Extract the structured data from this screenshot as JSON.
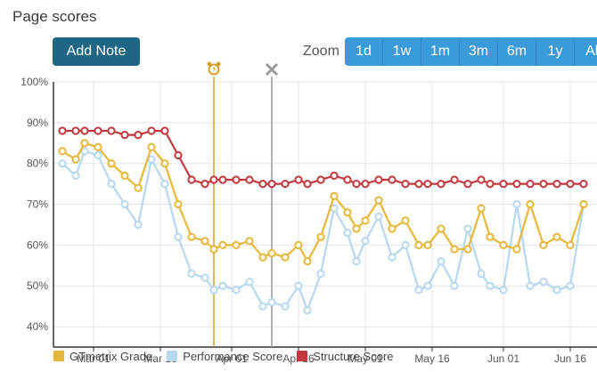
{
  "page_title": "Page scores",
  "add_note_label": "Add Note",
  "zoom": {
    "label": "Zoom",
    "options": [
      "1d",
      "1w",
      "1m",
      "3m",
      "6m",
      "1y",
      "All"
    ]
  },
  "colors": {
    "gtmetrix": "#e6b83a",
    "performance": "#b6d8ef",
    "structure": "#c0383d",
    "accent_button": "#1f6684",
    "zoom_button": "#3a9bd8",
    "annotation_alarm": "#d4a12a",
    "annotation_cross": "#999999"
  },
  "chart_data": {
    "type": "line",
    "ylim": [
      35,
      100
    ],
    "yticks": [
      40,
      50,
      60,
      70,
      80,
      90,
      100
    ],
    "ytick_labels": [
      "40%",
      "50%",
      "60%",
      "70%",
      "80%",
      "90%",
      "100%"
    ],
    "xtick_labels": [
      "Mar 01",
      "Mar 16",
      "Apr 01",
      "Apr 16",
      "May 01",
      "May 16",
      "Jun 01",
      "Jun 16"
    ],
    "x_start": "2016-02-21",
    "x_end": "2016-06-22",
    "xticks": [
      "2016-03-01",
      "2016-03-16",
      "2016-04-01",
      "2016-04-16",
      "2016-05-01",
      "2016-05-16",
      "2016-06-01",
      "2016-06-16"
    ],
    "x": [
      "2016-02-23",
      "2016-02-26",
      "2016-02-28",
      "2016-03-02",
      "2016-03-05",
      "2016-03-08",
      "2016-03-11",
      "2016-03-14",
      "2016-03-17",
      "2016-03-20",
      "2016-03-23",
      "2016-03-26",
      "2016-03-28",
      "2016-03-30",
      "2016-04-02",
      "2016-04-05",
      "2016-04-08",
      "2016-04-10",
      "2016-04-13",
      "2016-04-16",
      "2016-04-18",
      "2016-04-21",
      "2016-04-24",
      "2016-04-27",
      "2016-04-29",
      "2016-05-01",
      "2016-05-04",
      "2016-05-07",
      "2016-05-10",
      "2016-05-13",
      "2016-05-15",
      "2016-05-18",
      "2016-05-21",
      "2016-05-24",
      "2016-05-27",
      "2016-05-29",
      "2016-06-01",
      "2016-06-04",
      "2016-06-07",
      "2016-06-10",
      "2016-06-13",
      "2016-06-16",
      "2016-06-19"
    ],
    "series": [
      {
        "name": "GTmetrix Grade",
        "color": "#e6b83a",
        "values": [
          83,
          81,
          85,
          84,
          80,
          77,
          74,
          84,
          80,
          70,
          62,
          61,
          59,
          60,
          60,
          61,
          57,
          58,
          57,
          60,
          56,
          62,
          72,
          68,
          64,
          66,
          71,
          64,
          66,
          60,
          60,
          64,
          59,
          59,
          69,
          62,
          60,
          59,
          70,
          60,
          62,
          60,
          70
        ]
      },
      {
        "name": "Performance Score",
        "color": "#b6d8ef",
        "values": [
          80,
          77,
          83,
          82,
          75,
          70,
          65,
          81,
          75,
          62,
          53,
          52,
          49,
          50,
          49,
          51,
          45,
          46,
          45,
          50,
          44,
          53,
          69,
          63,
          56,
          61,
          67,
          57,
          60,
          49,
          50,
          56,
          50,
          64,
          53,
          50,
          49,
          70,
          50,
          51,
          49,
          50,
          70
        ]
      },
      {
        "name": "Structure Score",
        "color": "#c0383d",
        "values": [
          88,
          88,
          88,
          88,
          88,
          87,
          87,
          88,
          88,
          82,
          76,
          75,
          76,
          76,
          76,
          76,
          75,
          75,
          75,
          76,
          75,
          76,
          77,
          76,
          75,
          75,
          76,
          76,
          75,
          75,
          75,
          75,
          76,
          75,
          76,
          75,
          75,
          75,
          75,
          75,
          75,
          75,
          75
        ]
      }
    ],
    "annotations": [
      {
        "type": "alarm",
        "date": "2016-03-28"
      },
      {
        "type": "cross",
        "date": "2016-04-10"
      }
    ],
    "grid": true,
    "legend_position": "bottom-left"
  }
}
